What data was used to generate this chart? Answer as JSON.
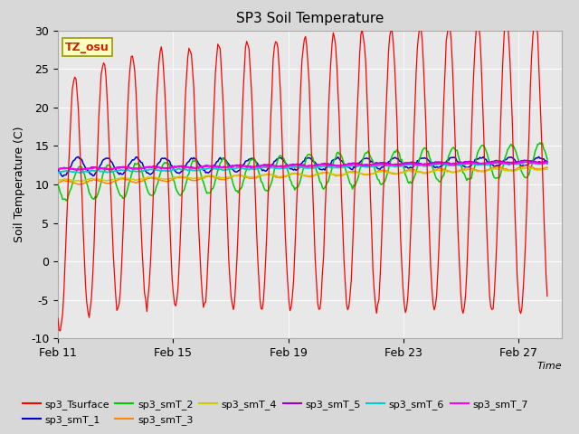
{
  "title": "SP3 Soil Temperature",
  "xlabel": "Time",
  "ylabel": "Soil Temperature (C)",
  "ylim": [
    -10,
    30
  ],
  "xlim_days": [
    0,
    17.5
  ],
  "x_ticks_labels": [
    "Feb 11",
    "Feb 15",
    "Feb 19",
    "Feb 23",
    "Feb 27"
  ],
  "x_ticks_pos": [
    0,
    4,
    8,
    12,
    16
  ],
  "tz_label": "TZ_osu",
  "legend_entries": [
    {
      "label": "sp3_Tsurface",
      "color": "#ff0000"
    },
    {
      "label": "sp3_smT_1",
      "color": "#0000cc"
    },
    {
      "label": "sp3_smT_2",
      "color": "#00cc00"
    },
    {
      "label": "sp3_smT_3",
      "color": "#ff8800"
    },
    {
      "label": "sp3_smT_4",
      "color": "#cccc00"
    },
    {
      "label": "sp3_smT_5",
      "color": "#9900cc"
    },
    {
      "label": "sp3_smT_6",
      "color": "#00cccc"
    },
    {
      "label": "sp3_smT_7",
      "color": "#ff00ff"
    }
  ],
  "yticks": [
    -10,
    -5,
    0,
    5,
    10,
    15,
    20,
    25,
    30
  ]
}
